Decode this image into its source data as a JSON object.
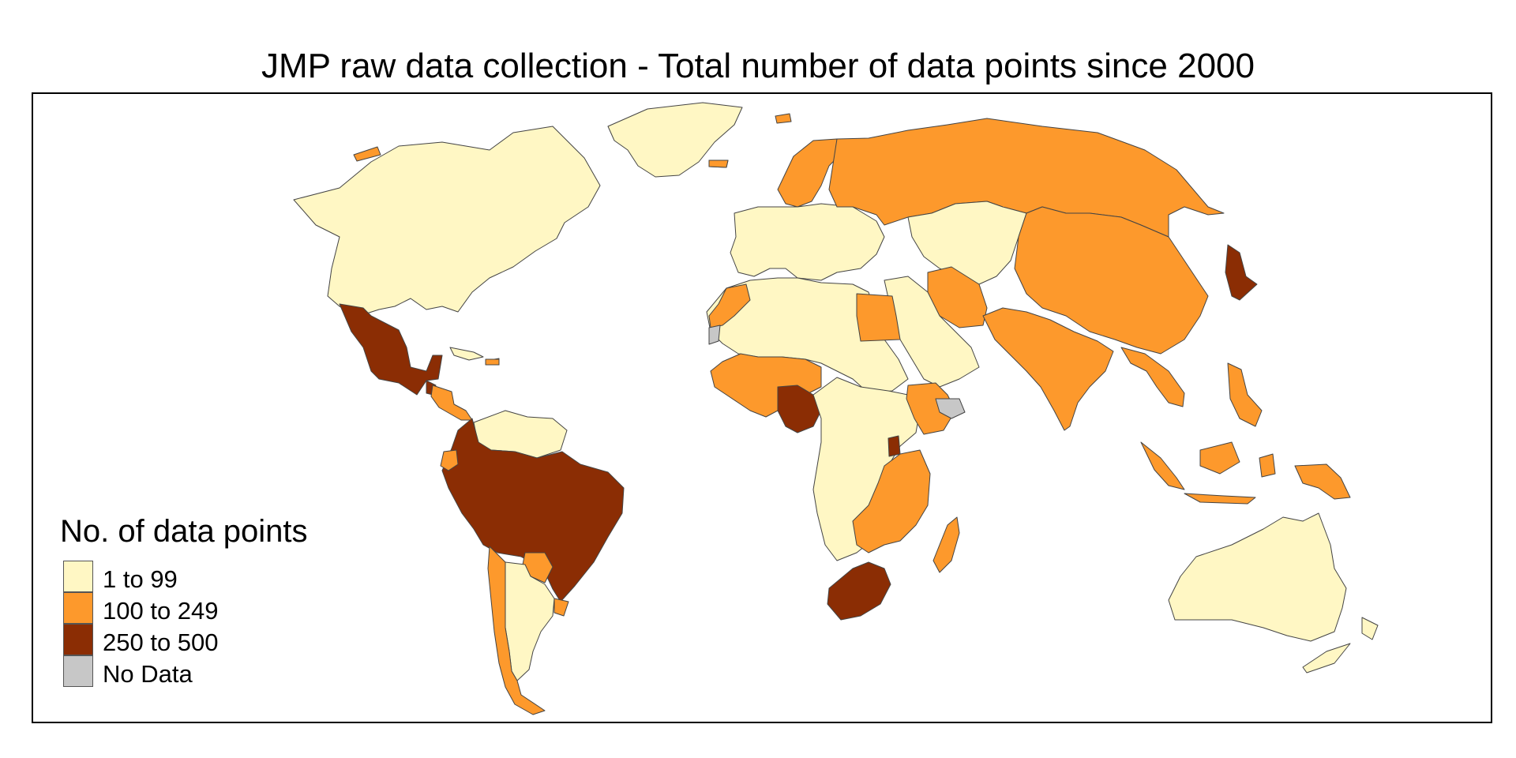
{
  "title": "JMP raw data collection - Total number of data points since 2000",
  "legend": {
    "title": "No. of data points",
    "items": [
      {
        "label": "1 to 99",
        "color": "#fff7c4"
      },
      {
        "label": "100 to 249",
        "color": "#fd992c"
      },
      {
        "label": "250 to 500",
        "color": "#8b2d04"
      },
      {
        "label": "No Data",
        "color": "#c7c7c7"
      }
    ]
  },
  "colors": {
    "low": "#fff7c4",
    "mid": "#fd992c",
    "high": "#8b2d04",
    "nodata": "#c7c7c7",
    "border": "#444444"
  },
  "regions": [
    {
      "name": "canada-usa",
      "class": "low"
    },
    {
      "name": "greenland",
      "class": "low"
    },
    {
      "name": "alaska-islands",
      "class": "mid"
    },
    {
      "name": "mexico",
      "class": "high"
    },
    {
      "name": "central-america",
      "class": "mid"
    },
    {
      "name": "guatemala",
      "class": "high"
    },
    {
      "name": "caribbean",
      "class": "low"
    },
    {
      "name": "dominican-republic",
      "class": "mid"
    },
    {
      "name": "brazil-andes",
      "class": "high"
    },
    {
      "name": "guianas-venezuela",
      "class": "low"
    },
    {
      "name": "ecuador",
      "class": "mid"
    },
    {
      "name": "paraguay",
      "class": "mid"
    },
    {
      "name": "uruguay",
      "class": "mid"
    },
    {
      "name": "argentina",
      "class": "low"
    },
    {
      "name": "chile",
      "class": "mid"
    },
    {
      "name": "europe",
      "class": "low"
    },
    {
      "name": "scandinavia",
      "class": "mid"
    },
    {
      "name": "iceland",
      "class": "mid"
    },
    {
      "name": "russia",
      "class": "mid"
    },
    {
      "name": "kazakhstan-central-asia",
      "class": "low"
    },
    {
      "name": "china-mongolia",
      "class": "mid"
    },
    {
      "name": "iran",
      "class": "mid"
    },
    {
      "name": "south-asia",
      "class": "mid"
    },
    {
      "name": "middle-east",
      "class": "low"
    },
    {
      "name": "japan",
      "class": "high"
    },
    {
      "name": "southeast-asia",
      "class": "mid"
    },
    {
      "name": "indonesia",
      "class": "mid"
    },
    {
      "name": "philippines",
      "class": "mid"
    },
    {
      "name": "papua-new-guinea",
      "class": "mid"
    },
    {
      "name": "australia",
      "class": "low"
    },
    {
      "name": "new-zealand",
      "class": "low"
    },
    {
      "name": "north-africa",
      "class": "low"
    },
    {
      "name": "morocco",
      "class": "mid"
    },
    {
      "name": "egypt",
      "class": "mid"
    },
    {
      "name": "western-sahara",
      "class": "nodata"
    },
    {
      "name": "sahel-west-africa",
      "class": "mid"
    },
    {
      "name": "nigeria",
      "class": "high"
    },
    {
      "name": "central-africa",
      "class": "low"
    },
    {
      "name": "ethiopia",
      "class": "mid"
    },
    {
      "name": "somalia",
      "class": "nodata"
    },
    {
      "name": "uganda",
      "class": "high"
    },
    {
      "name": "east-southern-africa",
      "class": "mid"
    },
    {
      "name": "south-africa",
      "class": "high"
    },
    {
      "name": "madagascar",
      "class": "mid"
    }
  ]
}
